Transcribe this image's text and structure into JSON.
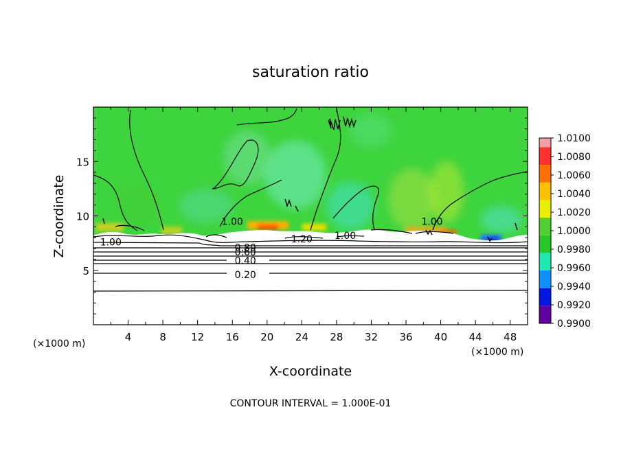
{
  "chart_data": {
    "type": "heatmap",
    "title": "saturation ratio",
    "xlabel": "X-coordinate",
    "ylabel": "Z-coordinate",
    "x_unit": "(×1000 m)",
    "x_unit_right": "(×1000 m)",
    "xlim": [
      0,
      50
    ],
    "ylim": [
      0,
      20
    ],
    "x_ticks": [
      4,
      8,
      12,
      16,
      20,
      24,
      28,
      32,
      36,
      40,
      44,
      48
    ],
    "y_ticks": [
      5,
      10,
      15
    ],
    "colorbar": {
      "labels": [
        "1.0100",
        "1.0080",
        "1.0060",
        "1.0040",
        "1.0020",
        "1.0000",
        "0.9980",
        "0.9960",
        "0.9940",
        "0.9920",
        "0.9900"
      ],
      "bins": [
        "#f5a0a0",
        "#ff3030",
        "#ff7000",
        "#ffc000",
        "#e8f000",
        "#50d030",
        "#28c828",
        "#20e8b0",
        "#1090ff",
        "#0018e0",
        "#6000a0"
      ]
    },
    "contour_labels": [
      {
        "text": "1.00",
        "x": 2.0,
        "z": 7.6
      },
      {
        "text": "0.80",
        "x": 17.5,
        "z": 7.1
      },
      {
        "text": "0.60",
        "x": 17.5,
        "z": 6.7
      },
      {
        "text": "0.40",
        "x": 17.5,
        "z": 5.9
      },
      {
        "text": "0.20",
        "x": 17.5,
        "z": 4.6
      },
      {
        "text": "1.20",
        "x": 24.0,
        "z": 7.9
      },
      {
        "text": "1.00",
        "x": 29.0,
        "z": 8.2
      },
      {
        "text": "1.00",
        "x": 16.0,
        "z": 9.5
      },
      {
        "text": "1.00",
        "x": 39.0,
        "z": 9.5
      }
    ],
    "footer": "CONTOUR INTERVAL = 1.000E-01"
  }
}
